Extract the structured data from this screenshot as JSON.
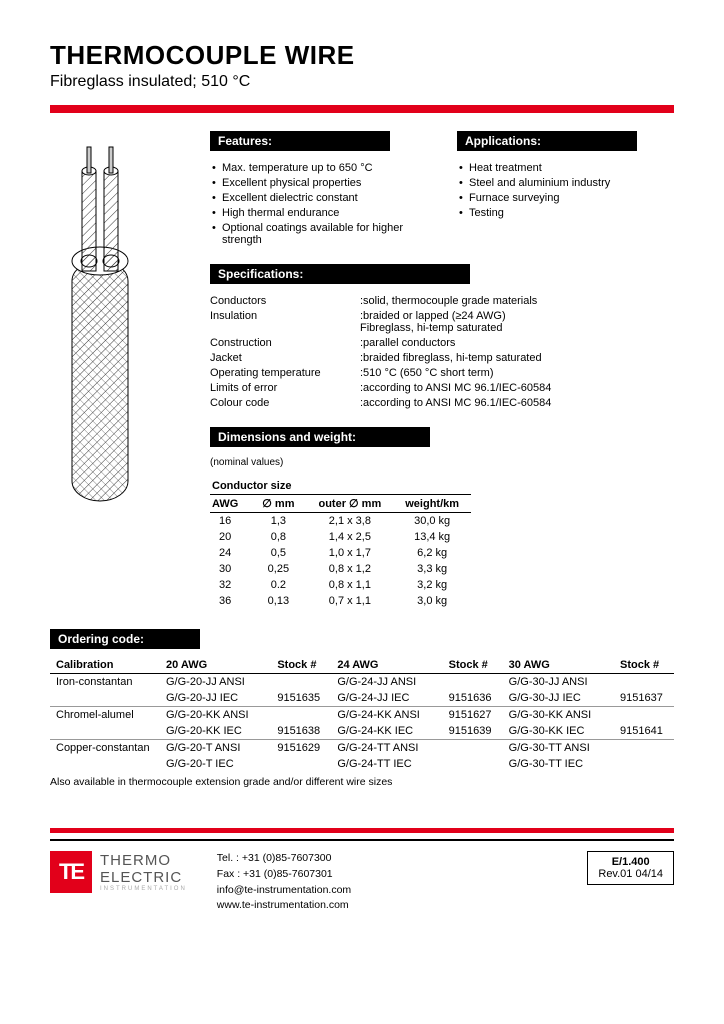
{
  "header": {
    "title": "THERMOCOUPLE WIRE",
    "subtitle": "Fibreglass insulated; 510 °C"
  },
  "features": {
    "heading": "Features:",
    "items": [
      "Max. temperature up to 650 °C",
      "Excellent physical properties",
      "Excellent dielectric constant",
      "High thermal endurance",
      "Optional coatings available for higher strength"
    ]
  },
  "applications": {
    "heading": "Applications:",
    "items": [
      "Heat treatment",
      "Steel and aluminium industry",
      "Furnace surveying",
      "Testing"
    ]
  },
  "specifications": {
    "heading": "Specifications:",
    "rows": [
      {
        "label": "Conductors",
        "value": ":solid, thermocouple grade materials"
      },
      {
        "label": "Insulation",
        "value": ":braided or lapped (≥24 AWG)\nFibreglass, hi-temp saturated"
      },
      {
        "label": "Construction",
        "value": ":parallel conductors"
      },
      {
        "label": "Jacket",
        "value": ":braided fibreglass, hi-temp saturated"
      },
      {
        "label": "Operating temperature",
        "value": ":510 °C (650 °C short term)"
      },
      {
        "label": "Limits of error",
        "value": ":according to ANSI MC 96.1/IEC-60584"
      },
      {
        "label": "Colour code",
        "value": ":according to ANSI MC 96.1/IEC-60584"
      }
    ]
  },
  "dimensions": {
    "heading": "Dimensions and weight:",
    "note": "(nominal values)",
    "group_header": "Conductor size",
    "columns": [
      "AWG",
      "∅ mm",
      "outer ∅ mm",
      "weight/km"
    ],
    "rows": [
      [
        "16",
        "1,3",
        "2,1 x 3,8",
        "30,0 kg"
      ],
      [
        "20",
        "0,8",
        "1,4 x 2,5",
        "13,4 kg"
      ],
      [
        "24",
        "0,5",
        "1,0 x 1,7",
        "6,2 kg"
      ],
      [
        "30",
        "0,25",
        "0,8 x 1,2",
        "3,3 kg"
      ],
      [
        "32",
        "0.2",
        "0,8 x 1,1",
        "3,2 kg"
      ],
      [
        "36",
        "0,13",
        "0,7 x 1,1",
        "3,0 kg"
      ]
    ]
  },
  "ordering": {
    "heading": "Ordering code:",
    "col_headers": [
      "Calibration",
      "20 AWG",
      "Stock #",
      "24 AWG",
      "Stock #",
      "30 AWG",
      "Stock #"
    ],
    "groups": [
      {
        "cal": "Iron-constantan",
        "r1": [
          "G/G-20-JJ ANSI",
          "",
          "G/G-24-JJ ANSI",
          "",
          "G/G-30-JJ ANSI",
          ""
        ],
        "r2": [
          "G/G-20-JJ IEC",
          "9151635",
          "G/G-24-JJ IEC",
          "9151636",
          "G/G-30-JJ IEC",
          "9151637"
        ]
      },
      {
        "cal": "Chromel-alumel",
        "r1": [
          "G/G-20-KK ANSI",
          "",
          "G/G-24-KK ANSI",
          "9151627",
          "G/G-30-KK ANSI",
          ""
        ],
        "r2": [
          "G/G-20-KK IEC",
          "9151638",
          "G/G-24-KK IEC",
          "9151639",
          "G/G-30-KK IEC",
          "9151641"
        ]
      },
      {
        "cal": "Copper-constantan",
        "r1": [
          "G/G-20-T ANSI",
          "9151629",
          "G/G-24-TT ANSI",
          "",
          "G/G-30-TT ANSI",
          ""
        ],
        "r2": [
          "G/G-20-T IEC",
          "",
          "G/G-24-TT IEC",
          "",
          "G/G-30-TT IEC",
          ""
        ]
      }
    ],
    "footnote": "Also available in thermocouple extension grade and/or different wire sizes"
  },
  "footer": {
    "logo": {
      "badge": "TE",
      "line1": "THERMO",
      "line2": "ELECTRIC",
      "line3": "INSTRUMENTATION"
    },
    "contact": {
      "tel": "Tel. : +31 (0)85-7607300",
      "fax": "Fax : +31 (0)85-7607301",
      "email": "info@te-instrumentation.com",
      "web": "www.te-instrumentation.com"
    },
    "docref": {
      "code": "E/1.400",
      "rev": "Rev.01  04/14"
    }
  },
  "colors": {
    "accent": "#e2001a",
    "black": "#000000",
    "white": "#ffffff"
  }
}
